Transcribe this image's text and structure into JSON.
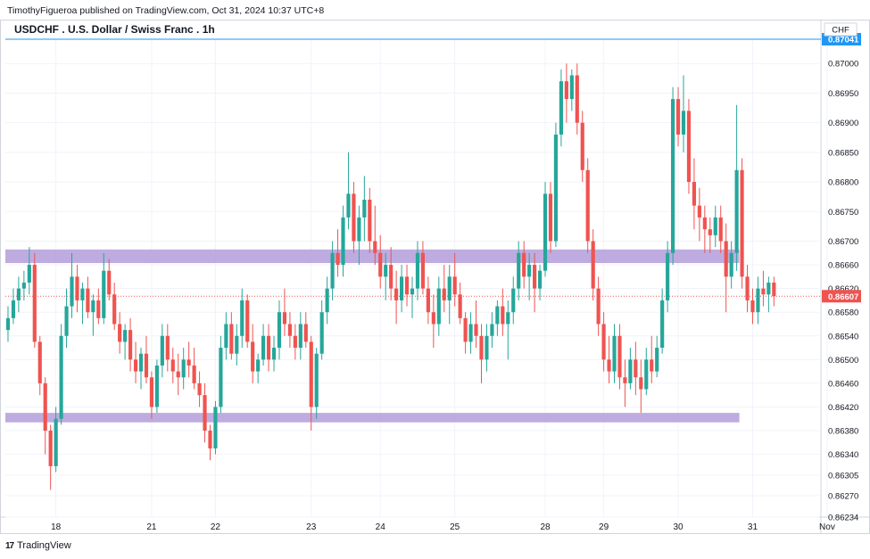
{
  "header": {
    "published_line": "TimothyFigueroa published on TradingView.com, Oct 31, 2024 10:37 UTC+8"
  },
  "brand": {
    "name": "TradingView",
    "icon": "tradingview-logo-icon"
  },
  "colors": {
    "up": "#26a69a",
    "down": "#ef5350",
    "zone": "#b39ddb",
    "line": "#2196f3",
    "last_price_bg": "#ef5350",
    "line_label_bg": "#2196f3"
  },
  "chart_data": {
    "type": "candlestick",
    "title": "USDCHF . U.S. Dollar / Swiss Franc . 1h",
    "currency": "CHF",
    "ylim": [
      0.86234,
      0.87041
    ],
    "yticks": [
      "0.87000",
      "0.86950",
      "0.86900",
      "0.86850",
      "0.86800",
      "0.86750",
      "0.86700",
      "0.86660",
      "0.86620",
      "0.86580",
      "0.86540",
      "0.86500",
      "0.86460",
      "0.86420",
      "0.86380",
      "0.86340",
      "0.86305",
      "0.86270",
      "0.86234"
    ],
    "xticks": [
      {
        "label": "18",
        "i": 9
      },
      {
        "label": "21",
        "i": 27
      },
      {
        "label": "22",
        "i": 39
      },
      {
        "label": "23",
        "i": 57
      },
      {
        "label": "24",
        "i": 70
      },
      {
        "label": "25",
        "i": 84
      },
      {
        "label": "28",
        "i": 101
      },
      {
        "label": "29",
        "i": 112
      },
      {
        "label": "30",
        "i": 126
      },
      {
        "label": "31",
        "i": 140
      },
      {
        "label": "Nov",
        "i": 154
      }
    ],
    "horizontal_line": {
      "price": 0.87041,
      "label": "0.87041"
    },
    "last_price": {
      "price": 0.86607,
      "label": "0.86607"
    },
    "zones": [
      {
        "from_i": 0,
        "to_i": 137,
        "low": 0.86663,
        "high": 0.86686
      },
      {
        "from_i": 0,
        "to_i": 137,
        "low": 0.86394,
        "high": 0.8641
      }
    ],
    "candles": [
      [
        0.8655,
        0.8659,
        0.8653,
        0.8657
      ],
      [
        0.8657,
        0.8662,
        0.8656,
        0.866
      ],
      [
        0.866,
        0.8664,
        0.8658,
        0.8662
      ],
      [
        0.8662,
        0.8665,
        0.866,
        0.8663
      ],
      [
        0.8663,
        0.8669,
        0.8661,
        0.8666
      ],
      [
        0.8666,
        0.8668,
        0.8652,
        0.8653
      ],
      [
        0.8653,
        0.8654,
        0.8644,
        0.8646
      ],
      [
        0.8646,
        0.8647,
        0.8634,
        0.8638
      ],
      [
        0.8638,
        0.8639,
        0.8628,
        0.8632
      ],
      [
        0.8632,
        0.8642,
        0.8631,
        0.864
      ],
      [
        0.864,
        0.8656,
        0.8639,
        0.8654
      ],
      [
        0.8654,
        0.8662,
        0.8652,
        0.8659
      ],
      [
        0.8659,
        0.8668,
        0.8657,
        0.8664
      ],
      [
        0.8664,
        0.8666,
        0.8658,
        0.866
      ],
      [
        0.866,
        0.8663,
        0.8656,
        0.8662
      ],
      [
        0.8662,
        0.8664,
        0.8657,
        0.8658
      ],
      [
        0.8658,
        0.8661,
        0.8654,
        0.866
      ],
      [
        0.866,
        0.8662,
        0.8656,
        0.8657
      ],
      [
        0.8657,
        0.8668,
        0.8656,
        0.8665
      ],
      [
        0.8665,
        0.8667,
        0.866,
        0.8661
      ],
      [
        0.8661,
        0.8663,
        0.8655,
        0.8656
      ],
      [
        0.8656,
        0.8658,
        0.8651,
        0.8653
      ],
      [
        0.8653,
        0.8656,
        0.865,
        0.8655
      ],
      [
        0.8655,
        0.8657,
        0.8648,
        0.865
      ],
      [
        0.865,
        0.8653,
        0.8646,
        0.8648
      ],
      [
        0.8648,
        0.8652,
        0.8645,
        0.8651
      ],
      [
        0.8651,
        0.8654,
        0.8646,
        0.8647
      ],
      [
        0.8647,
        0.8648,
        0.864,
        0.8642
      ],
      [
        0.8642,
        0.865,
        0.8641,
        0.8649
      ],
      [
        0.8649,
        0.8656,
        0.8647,
        0.8654
      ],
      [
        0.8654,
        0.8656,
        0.8648,
        0.865
      ],
      [
        0.865,
        0.8652,
        0.8646,
        0.8648
      ],
      [
        0.8648,
        0.8651,
        0.8644,
        0.8647
      ],
      [
        0.8647,
        0.8652,
        0.8645,
        0.865
      ],
      [
        0.865,
        0.8653,
        0.8647,
        0.8649
      ],
      [
        0.8649,
        0.8652,
        0.8645,
        0.8646
      ],
      [
        0.8646,
        0.8648,
        0.8642,
        0.8644
      ],
      [
        0.8644,
        0.8646,
        0.8636,
        0.8638
      ],
      [
        0.8638,
        0.8639,
        0.8633,
        0.8635
      ],
      [
        0.8635,
        0.8643,
        0.8634,
        0.8642
      ],
      [
        0.8642,
        0.8654,
        0.8641,
        0.8652
      ],
      [
        0.8652,
        0.8658,
        0.865,
        0.8656
      ],
      [
        0.8656,
        0.8658,
        0.865,
        0.8651
      ],
      [
        0.8651,
        0.8656,
        0.8649,
        0.8654
      ],
      [
        0.8654,
        0.8662,
        0.8652,
        0.866
      ],
      [
        0.866,
        0.8661,
        0.8652,
        0.8653
      ],
      [
        0.8653,
        0.8656,
        0.8646,
        0.8648
      ],
      [
        0.8648,
        0.8651,
        0.8646,
        0.865
      ],
      [
        0.865,
        0.8656,
        0.8649,
        0.8654
      ],
      [
        0.8654,
        0.8656,
        0.8648,
        0.865
      ],
      [
        0.865,
        0.8654,
        0.8648,
        0.8652
      ],
      [
        0.8652,
        0.866,
        0.865,
        0.8658
      ],
      [
        0.8658,
        0.8662,
        0.8654,
        0.8656
      ],
      [
        0.8656,
        0.8658,
        0.8652,
        0.8654
      ],
      [
        0.8654,
        0.8656,
        0.865,
        0.8652
      ],
      [
        0.8652,
        0.8658,
        0.865,
        0.8656
      ],
      [
        0.8656,
        0.8658,
        0.8652,
        0.8653
      ],
      [
        0.8653,
        0.8654,
        0.8638,
        0.8642
      ],
      [
        0.8642,
        0.8652,
        0.864,
        0.8651
      ],
      [
        0.8651,
        0.866,
        0.865,
        0.8658
      ],
      [
        0.8658,
        0.8664,
        0.8656,
        0.8662
      ],
      [
        0.8662,
        0.867,
        0.866,
        0.8668
      ],
      [
        0.8668,
        0.8672,
        0.8664,
        0.8666
      ],
      [
        0.8666,
        0.8676,
        0.8664,
        0.8674
      ],
      [
        0.8674,
        0.8685,
        0.8672,
        0.8678
      ],
      [
        0.8678,
        0.868,
        0.8668,
        0.867
      ],
      [
        0.867,
        0.8676,
        0.8666,
        0.8674
      ],
      [
        0.8674,
        0.8681,
        0.867,
        0.8677
      ],
      [
        0.8677,
        0.8679,
        0.8668,
        0.867
      ],
      [
        0.867,
        0.8676,
        0.8666,
        0.8668
      ],
      [
        0.8668,
        0.8671,
        0.8662,
        0.8664
      ],
      [
        0.8664,
        0.8668,
        0.866,
        0.8666
      ],
      [
        0.8666,
        0.8669,
        0.866,
        0.8662
      ],
      [
        0.8662,
        0.8665,
        0.8656,
        0.866
      ],
      [
        0.866,
        0.8666,
        0.8658,
        0.8664
      ],
      [
        0.8664,
        0.8666,
        0.8659,
        0.8661
      ],
      [
        0.8661,
        0.8664,
        0.8657,
        0.8662
      ],
      [
        0.8662,
        0.867,
        0.866,
        0.8668
      ],
      [
        0.8668,
        0.867,
        0.8661,
        0.8662
      ],
      [
        0.8662,
        0.8664,
        0.8656,
        0.8658
      ],
      [
        0.8658,
        0.8661,
        0.8652,
        0.8656
      ],
      [
        0.8656,
        0.8664,
        0.8654,
        0.8662
      ],
      [
        0.8662,
        0.8666,
        0.8658,
        0.866
      ],
      [
        0.866,
        0.8666,
        0.8656,
        0.8664
      ],
      [
        0.8664,
        0.8668,
        0.8659,
        0.8661
      ],
      [
        0.8661,
        0.8663,
        0.8656,
        0.8657
      ],
      [
        0.8657,
        0.8658,
        0.8651,
        0.8653
      ],
      [
        0.8653,
        0.8658,
        0.8651,
        0.8656
      ],
      [
        0.8656,
        0.866,
        0.8652,
        0.8654
      ],
      [
        0.8654,
        0.8656,
        0.8646,
        0.865
      ],
      [
        0.865,
        0.8656,
        0.8648,
        0.8654
      ],
      [
        0.8654,
        0.8658,
        0.8652,
        0.8656
      ],
      [
        0.8656,
        0.866,
        0.8654,
        0.8659
      ],
      [
        0.8659,
        0.8662,
        0.8654,
        0.8656
      ],
      [
        0.8656,
        0.866,
        0.865,
        0.8658
      ],
      [
        0.8658,
        0.8664,
        0.8656,
        0.8662
      ],
      [
        0.8662,
        0.867,
        0.866,
        0.8668
      ],
      [
        0.8668,
        0.867,
        0.8662,
        0.8664
      ],
      [
        0.8664,
        0.8668,
        0.866,
        0.8666
      ],
      [
        0.8666,
        0.8668,
        0.8658,
        0.8662
      ],
      [
        0.8662,
        0.8666,
        0.866,
        0.8665
      ],
      [
        0.8665,
        0.868,
        0.8664,
        0.8678
      ],
      [
        0.8678,
        0.868,
        0.8668,
        0.867
      ],
      [
        0.867,
        0.869,
        0.8669,
        0.8688
      ],
      [
        0.8688,
        0.8699,
        0.8686,
        0.8697
      ],
      [
        0.8697,
        0.87,
        0.869,
        0.8694
      ],
      [
        0.8694,
        0.8699,
        0.8692,
        0.8698
      ],
      [
        0.8698,
        0.87,
        0.8688,
        0.869
      ],
      [
        0.869,
        0.8692,
        0.868,
        0.8682
      ],
      [
        0.8682,
        0.8684,
        0.8668,
        0.867
      ],
      [
        0.867,
        0.8672,
        0.866,
        0.8662
      ],
      [
        0.8662,
        0.8664,
        0.8654,
        0.8656
      ],
      [
        0.8656,
        0.8658,
        0.8648,
        0.865
      ],
      [
        0.865,
        0.8654,
        0.8646,
        0.8648
      ],
      [
        0.8648,
        0.8656,
        0.8646,
        0.8654
      ],
      [
        0.8654,
        0.8656,
        0.8645,
        0.8647
      ],
      [
        0.8647,
        0.865,
        0.8642,
        0.8646
      ],
      [
        0.8646,
        0.8652,
        0.8645,
        0.865
      ],
      [
        0.865,
        0.8653,
        0.8644,
        0.8647
      ],
      [
        0.8647,
        0.865,
        0.8641,
        0.8645
      ],
      [
        0.8645,
        0.8652,
        0.8644,
        0.865
      ],
      [
        0.865,
        0.8654,
        0.8646,
        0.8648
      ],
      [
        0.8648,
        0.8654,
        0.8647,
        0.8652
      ],
      [
        0.8652,
        0.8662,
        0.8651,
        0.866
      ],
      [
        0.866,
        0.867,
        0.8658,
        0.8668
      ],
      [
        0.8668,
        0.8696,
        0.8666,
        0.8694
      ],
      [
        0.8694,
        0.8696,
        0.8686,
        0.8688
      ],
      [
        0.8688,
        0.8698,
        0.8685,
        0.8692
      ],
      [
        0.8692,
        0.8694,
        0.8678,
        0.868
      ],
      [
        0.868,
        0.8684,
        0.8672,
        0.8676
      ],
      [
        0.8676,
        0.8679,
        0.867,
        0.8674
      ],
      [
        0.8674,
        0.8676,
        0.8668,
        0.8672
      ],
      [
        0.8672,
        0.8674,
        0.8668,
        0.8671
      ],
      [
        0.8671,
        0.8676,
        0.8669,
        0.8674
      ],
      [
        0.8674,
        0.8676,
        0.8668,
        0.867
      ],
      [
        0.867,
        0.8673,
        0.8658,
        0.8664
      ],
      [
        0.8664,
        0.867,
        0.8662,
        0.8668
      ],
      [
        0.8668,
        0.8693,
        0.8665,
        0.8682
      ],
      [
        0.8682,
        0.8684,
        0.8662,
        0.8664
      ],
      [
        0.8664,
        0.8666,
        0.8658,
        0.866
      ],
      [
        0.866,
        0.8662,
        0.8656,
        0.8658
      ],
      [
        0.8658,
        0.8664,
        0.8656,
        0.8662
      ],
      [
        0.8662,
        0.8665,
        0.8659,
        0.8661
      ],
      [
        0.8661,
        0.8664,
        0.8658,
        0.8663
      ],
      [
        0.8663,
        0.8664,
        0.8659,
        0.86607
      ]
    ]
  }
}
